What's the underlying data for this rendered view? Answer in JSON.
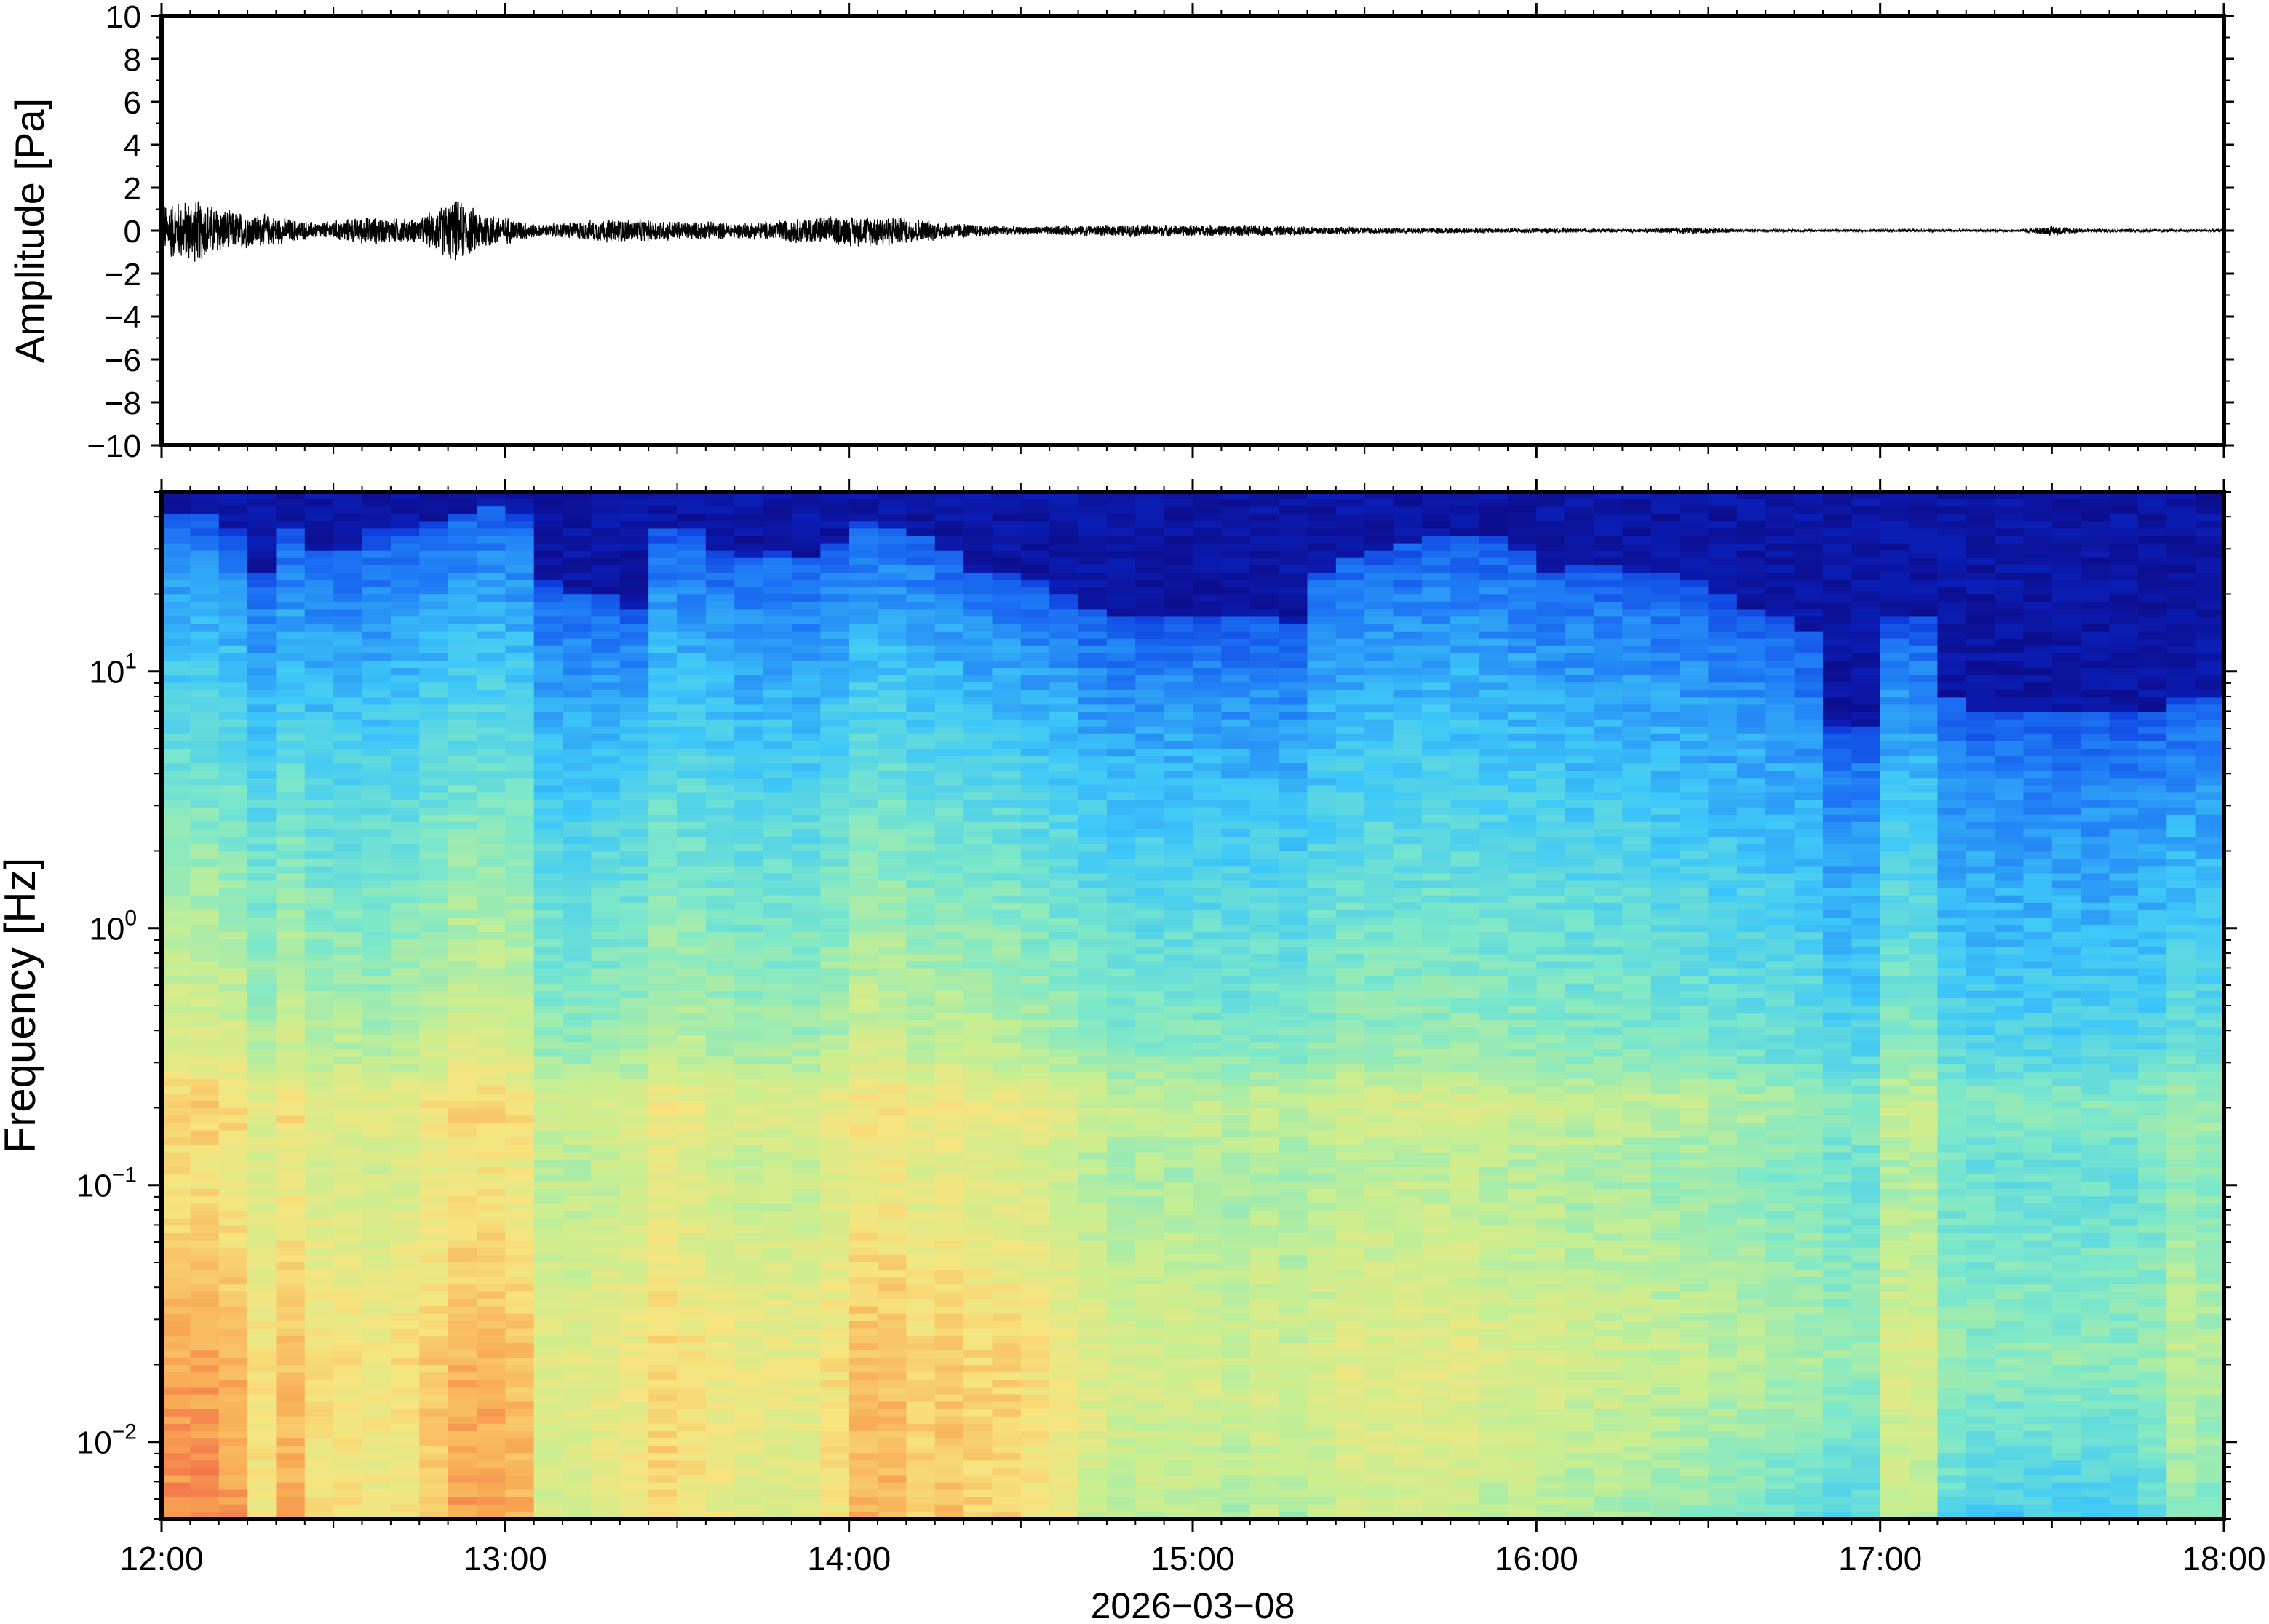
{
  "chart_data": [
    {
      "type": "line",
      "ylabel": "Amplitude [Pa]",
      "ylim": [
        -10,
        10
      ],
      "yticks": [
        10,
        8,
        6,
        4,
        2,
        0,
        -2,
        -4,
        -6,
        -8,
        -10
      ],
      "ytick_labels": [
        "10",
        "8",
        "6",
        "4",
        "2",
        "0",
        "−2",
        "−4",
        "−6",
        "−8",
        "−10"
      ],
      "xlim_hours": [
        12,
        18
      ],
      "line_color": "#000000",
      "envelope": {
        "hours": [
          12.0,
          12.1,
          12.2,
          12.3,
          12.45,
          12.6,
          12.75,
          12.85,
          12.95,
          13.1,
          13.3,
          13.5,
          13.7,
          13.9,
          14.1,
          14.3,
          14.5,
          14.8,
          15.1,
          15.4,
          15.6,
          16.0,
          16.3,
          16.45,
          16.6,
          17.0,
          17.4,
          17.5,
          17.6,
          18.0
        ],
        "amplitude": [
          1.4,
          1.6,
          1.0,
          0.8,
          0.4,
          0.7,
          0.6,
          1.6,
          0.9,
          0.3,
          0.6,
          0.5,
          0.4,
          0.7,
          0.8,
          0.4,
          0.2,
          0.3,
          0.3,
          0.2,
          0.15,
          0.12,
          0.08,
          0.18,
          0.06,
          0.06,
          0.06,
          0.25,
          0.08,
          0.06
        ]
      }
    },
    {
      "type": "heatmap",
      "ylabel": "Frequency [Hz]",
      "xlabel": "2026−03−08",
      "yscale": "log",
      "ylim": [
        0.005,
        50
      ],
      "ytick_labels": [
        {
          "base": "10",
          "exp": "1",
          "value": 10
        },
        {
          "base": "10",
          "exp": "0",
          "value": 1
        },
        {
          "base": "10",
          "exp": "−1",
          "value": 0.1
        },
        {
          "base": "10",
          "exp": "−2",
          "value": 0.01
        }
      ],
      "xtick_labels": [
        "12:00",
        "13:00",
        "14:00",
        "15:00",
        "16:00",
        "17:00",
        "18:00"
      ],
      "xlim_hours": [
        12,
        18
      ],
      "colormap": [
        "#0d0880",
        "#0a2cd8",
        "#1e78f5",
        "#3ec8f8",
        "#7ee8c8",
        "#c9ee90",
        "#f7e47e",
        "#f8a752",
        "#ef5148"
      ],
      "columns": {
        "count": 72,
        "top_hz": [
          40,
          40,
          35,
          25,
          35,
          30,
          30,
          35,
          35,
          38,
          42,
          44,
          40,
          22,
          20,
          20,
          18,
          35,
          35,
          30,
          28,
          30,
          28,
          32,
          38,
          36,
          34,
          30,
          25,
          25,
          22,
          20,
          17,
          16,
          16,
          16,
          16,
          16,
          16,
          15,
          25,
          28,
          30,
          32,
          33,
          33,
          33,
          30,
          25,
          26,
          26,
          25,
          24,
          22,
          20,
          18,
          16,
          14,
          6,
          6,
          16,
          16,
          8,
          7,
          7,
          7,
          7,
          7,
          7,
          7,
          8,
          8
        ],
        "strength": [
          0.95,
          0.95,
          0.9,
          0.7,
          0.85,
          0.7,
          0.7,
          0.65,
          0.7,
          0.8,
          0.9,
          0.9,
          0.85,
          0.55,
          0.55,
          0.6,
          0.65,
          0.75,
          0.7,
          0.65,
          0.6,
          0.6,
          0.6,
          0.7,
          0.85,
          0.85,
          0.75,
          0.8,
          0.75,
          0.75,
          0.7,
          0.65,
          0.55,
          0.5,
          0.5,
          0.5,
          0.5,
          0.45,
          0.5,
          0.45,
          0.5,
          0.55,
          0.55,
          0.55,
          0.55,
          0.55,
          0.5,
          0.5,
          0.5,
          0.45,
          0.45,
          0.45,
          0.4,
          0.4,
          0.35,
          0.35,
          0.3,
          0.3,
          0.25,
          0.25,
          0.5,
          0.5,
          0.25,
          0.2,
          0.2,
          0.2,
          0.2,
          0.2,
          0.2,
          0.25,
          0.4,
          0.35
        ]
      }
    }
  ]
}
